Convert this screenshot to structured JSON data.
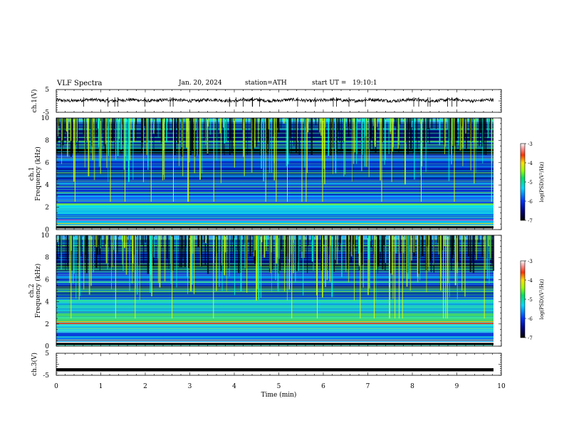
{
  "header": {
    "title": "VLF Spectra",
    "date": "Jan. 20, 2024",
    "station": "station=ATH",
    "start": "start UT =   19:10:1"
  },
  "chart_data": [
    {
      "type": "line",
      "name": "ch1-waveform",
      "ylabel": "ch.1(V)",
      "yticks": [
        "5",
        "-5"
      ],
      "ylim": [
        -5,
        5
      ],
      "xlim": [
        0,
        10
      ],
      "baseline_v": 0.3,
      "color": "#000000"
    },
    {
      "type": "heatmap",
      "name": "ch1-spectrogram",
      "ylabel": "ch.1\nFrequency (kHz)",
      "ylabel_lines": [
        "ch.1",
        "Frequency (kHz)"
      ],
      "yticks": [
        "0",
        "2",
        "4",
        "6",
        "8",
        "10"
      ],
      "ylim": [
        0,
        10
      ],
      "xlim": [
        0,
        9.8
      ],
      "colorbar": {
        "label": "log(PSD)(V²/Hz)",
        "ticks": [
          "-3",
          "-4",
          "-5",
          "-6",
          "-7"
        ],
        "range": [
          -7,
          -3
        ]
      }
    },
    {
      "type": "heatmap",
      "name": "ch2-spectrogram",
      "ylabel": "ch.2\nFrequency (kHz)",
      "ylabel_lines": [
        "ch.2",
        "Frequency (kHz)"
      ],
      "yticks": [
        "0",
        "2",
        "4",
        "6",
        "8",
        "10"
      ],
      "ylim": [
        0,
        10
      ],
      "xlim": [
        0,
        9.8
      ],
      "colorbar": {
        "label": "log(PSD)(V²/Hz)",
        "ticks": [
          "-3",
          "-4",
          "-5",
          "-6",
          "-7"
        ],
        "range": [
          -7,
          -3
        ]
      }
    },
    {
      "type": "line",
      "name": "ch3-waveform",
      "ylabel": "ch.3(V)",
      "yticks": [
        "5",
        "-5"
      ],
      "ylim": [
        -5,
        5
      ],
      "xlim": [
        0,
        9.8
      ],
      "baseline_v": -2.5,
      "color": "#000000"
    }
  ],
  "xaxis": {
    "label": "Time (min)",
    "ticks": [
      "0",
      "1",
      "2",
      "3",
      "4",
      "5",
      "6",
      "7",
      "8",
      "9",
      "10"
    ],
    "xlim": [
      0,
      10
    ]
  }
}
